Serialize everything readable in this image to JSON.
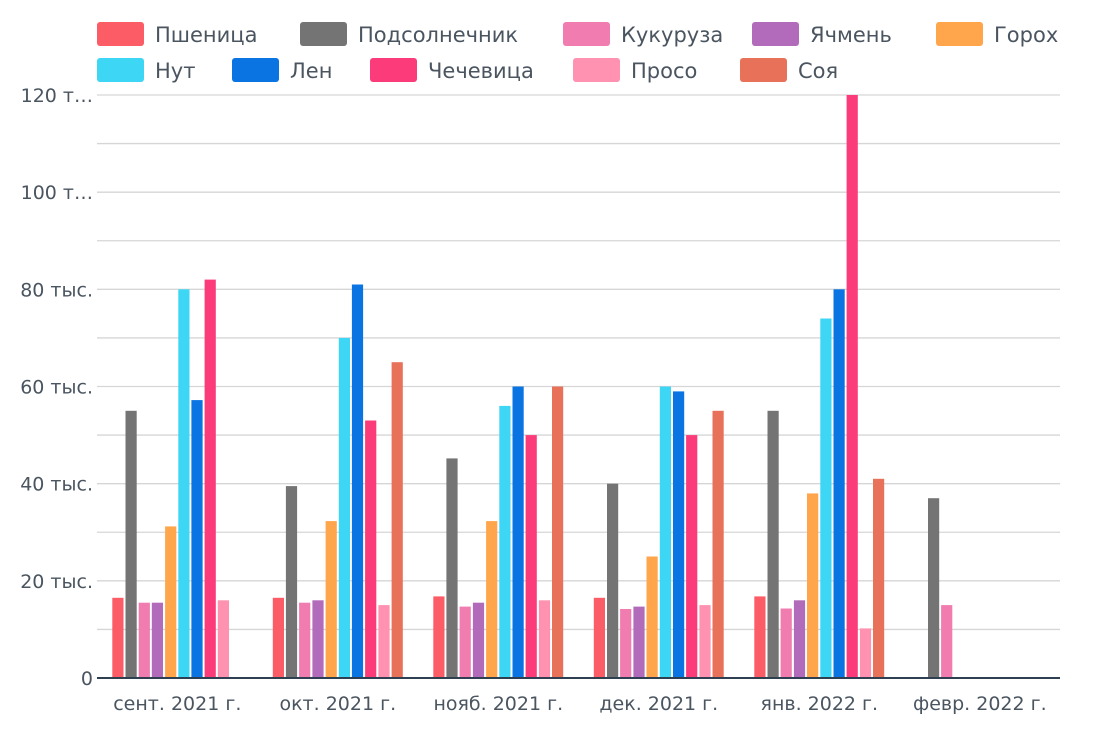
{
  "chart_data": {
    "type": "bar",
    "title": "",
    "xlabel": "",
    "ylabel": "",
    "ylim": [
      0,
      120000
    ],
    "yticks": [
      {
        "value": 0,
        "label": "0"
      },
      {
        "value": 20000,
        "label": "20 тыс."
      },
      {
        "value": 40000,
        "label": "40 тыс."
      },
      {
        "value": 60000,
        "label": "60 тыс."
      },
      {
        "value": 80000,
        "label": "80 тыс."
      },
      {
        "value": 100000,
        "label": "100 т…"
      },
      {
        "value": 120000,
        "label": "120 т…"
      }
    ],
    "grid_step": 10000,
    "legend_position": "top",
    "categories": [
      "сент. 2021 г.",
      "окт. 2021 г.",
      "нояб. 2021 г.",
      "дек. 2021 г.",
      "янв. 2022 г.",
      "февр. 2022 г."
    ],
    "series": [
      {
        "name": "Пшеница",
        "color": "#fc5c65",
        "values": [
          16500,
          16500,
          16800,
          16500,
          16800,
          null
        ]
      },
      {
        "name": "Подсолнечник",
        "color": "#747474",
        "values": [
          55000,
          39500,
          45200,
          40000,
          55000,
          37000
        ]
      },
      {
        "name": "Кукуруза",
        "color": "#f17cb0",
        "values": [
          15500,
          15500,
          14700,
          14200,
          14300,
          15000
        ]
      },
      {
        "name": "Ячмень",
        "color": "#b26bba",
        "values": [
          15500,
          16000,
          15500,
          14700,
          16000,
          null
        ]
      },
      {
        "name": "Горох",
        "color": "#ffa64d",
        "values": [
          31200,
          32300,
          32300,
          25000,
          38000,
          null
        ]
      },
      {
        "name": "Нут",
        "color": "#3dd6f5",
        "values": [
          80000,
          70000,
          56000,
          60000,
          74000,
          null
        ]
      },
      {
        "name": "Лен",
        "color": "#0b74e3",
        "values": [
          57200,
          81000,
          60000,
          59000,
          80000,
          null
        ]
      },
      {
        "name": "Чечевица",
        "color": "#fc3c7a",
        "values": [
          82000,
          53000,
          50000,
          50000,
          120000,
          null
        ]
      },
      {
        "name": "Просо",
        "color": "#ff92b0",
        "values": [
          16000,
          15000,
          16000,
          15000,
          10200,
          null
        ]
      },
      {
        "name": "Соя",
        "color": "#e8715a",
        "values": [
          null,
          65000,
          60000,
          55000,
          41000,
          null
        ]
      }
    ]
  }
}
